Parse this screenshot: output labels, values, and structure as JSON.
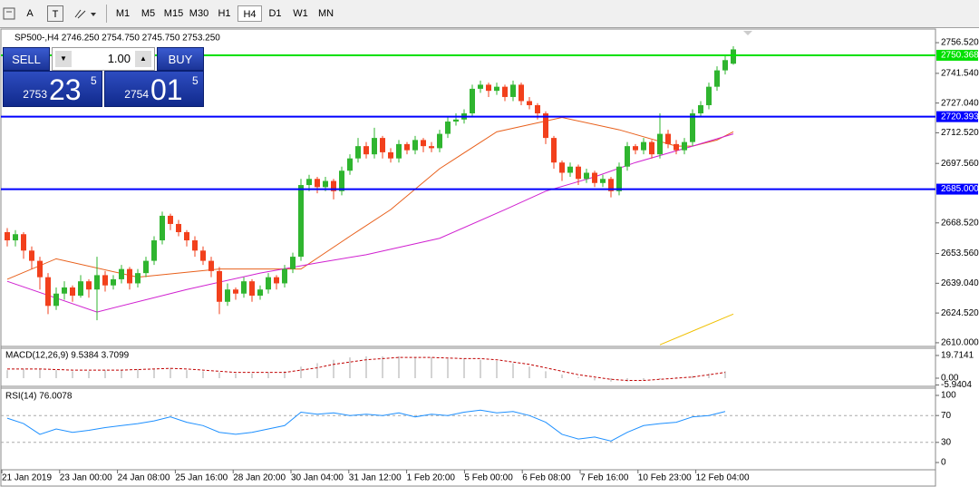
{
  "toolbar": {
    "tools": [
      "A",
      "T"
    ],
    "periods": [
      "M1",
      "M5",
      "M15",
      "M30",
      "H1",
      "H4",
      "D1",
      "W1",
      "MN"
    ],
    "active_period": 5
  },
  "trade_panel": {
    "sell": "SELL",
    "lots": "1.00",
    "buy": "BUY",
    "bid_big": "2753",
    "bid_pips": "23",
    "bid_frac": "5",
    "ask_big": "2754",
    "ask_pips": "01",
    "ask_frac": "5"
  },
  "chart": {
    "header": "SP500-,H4  2746.250 2754.750 2745.750 2753.250",
    "up_color": "#2fb52f",
    "down_color": "#f2401c",
    "ylim": [
      2608.2,
      2762.3
    ],
    "yticks": [
      {
        "value": 2756.52,
        "label": "2756.520"
      },
      {
        "value": 2741.54,
        "label": "2741.540"
      },
      {
        "value": 2727.04,
        "label": "2727.040"
      },
      {
        "value": 2712.52,
        "label": "2712.520"
      },
      {
        "value": 2697.56,
        "label": "2697.560"
      },
      {
        "value": 2668.52,
        "label": "2668.520"
      },
      {
        "value": 2653.56,
        "label": "2653.560"
      },
      {
        "value": 2639.04,
        "label": "2639.040"
      },
      {
        "value": 2624.52,
        "label": "2624.520"
      },
      {
        "value": 2610,
        "label": "2610.000"
      }
    ],
    "levels": [
      {
        "price": 2750.368,
        "color": "#00e000"
      },
      {
        "price": 2720.393,
        "color": "#0000ff"
      },
      {
        "price": {
          "value": 2685,
          "label": "2685.000"
        },
        "color": "#0000ff"
      }
    ],
    "candles": [
      [
        2664,
        2666,
        2657,
        2660
      ],
      [
        2660,
        2665,
        2657,
        2663
      ],
      [
        2663,
        2664,
        2651,
        2655
      ],
      [
        2655,
        2657,
        2646,
        2650
      ],
      [
        2650,
        2652,
        2636,
        2642
      ],
      [
        2642,
        2644,
        2624,
        2628
      ],
      [
        2628,
        2637,
        2626,
        2634
      ],
      [
        2634,
        2640,
        2631,
        2637
      ],
      [
        2637,
        2638,
        2630,
        2633
      ],
      [
        2633,
        2643,
        2632,
        2640
      ],
      [
        2640,
        2641,
        2632,
        2636
      ],
      [
        2636,
        2652,
        2621,
        2643
      ],
      [
        2643,
        2645,
        2635,
        2638
      ],
      [
        2638,
        2643,
        2636,
        2641
      ],
      [
        2641,
        2648,
        2639,
        2646
      ],
      [
        2646,
        2647,
        2636,
        2639
      ],
      [
        2639,
        2646,
        2637,
        2644
      ],
      [
        2644,
        2652,
        2642,
        2650
      ],
      [
        2650,
        2662,
        2648,
        2660
      ],
      [
        2660,
        2674,
        2658,
        2672
      ],
      [
        2672,
        2673,
        2665,
        2668
      ],
      [
        2668,
        2670,
        2662,
        2664
      ],
      [
        2664,
        2665,
        2657,
        2660
      ],
      [
        2660,
        2662,
        2652,
        2655
      ],
      [
        2655,
        2657,
        2648,
        2650
      ],
      [
        2650,
        2652,
        2642,
        2645
      ],
      [
        2645,
        2647,
        2624,
        2630
      ],
      [
        2630,
        2639,
        2628,
        2636
      ],
      [
        2636,
        2637,
        2631,
        2634
      ],
      [
        2634,
        2642,
        2632,
        2640
      ],
      [
        2640,
        2641,
        2630,
        2633
      ],
      [
        2633,
        2638,
        2631,
        2636
      ],
      [
        2636,
        2644,
        2634,
        2642
      ],
      [
        2642,
        2643,
        2636,
        2639
      ],
      [
        2639,
        2648,
        2637,
        2646
      ],
      [
        2646,
        2654,
        2644,
        2652
      ],
      [
        2652,
        2690,
        2650,
        2687
      ],
      [
        2687,
        2692,
        2684,
        2690
      ],
      [
        2690,
        2691,
        2683,
        2686
      ],
      [
        2686,
        2691,
        2684,
        2689
      ],
      [
        2689,
        2690,
        2680,
        2684
      ],
      [
        2684,
        2696,
        2682,
        2694
      ],
      [
        2694,
        2702,
        2692,
        2700
      ],
      [
        2700,
        2710,
        2698,
        2706
      ],
      [
        2706,
        2708,
        2700,
        2702
      ],
      [
        2702,
        2715,
        2700,
        2710
      ],
      [
        2710,
        2711,
        2700,
        2703
      ],
      [
        2703,
        2705,
        2698,
        2700
      ],
      [
        2700,
        2709,
        2698,
        2707
      ],
      [
        2707,
        2708,
        2702,
        2704
      ],
      [
        2704,
        2711,
        2702,
        2709
      ],
      [
        2709,
        2710,
        2703,
        2706
      ],
      [
        2706,
        2708,
        2703,
        2705
      ],
      [
        2705,
        2714,
        2703,
        2712
      ],
      [
        2712,
        2720,
        2710,
        2718
      ],
      [
        2718,
        2722,
        2716,
        2719
      ],
      [
        2719,
        2724,
        2717,
        2722
      ],
      [
        2722,
        2736,
        2720,
        2734
      ],
      [
        2734,
        2738,
        2732,
        2736
      ],
      [
        2736,
        2737,
        2730,
        2733
      ],
      [
        2733,
        2737,
        2731,
        2735
      ],
      [
        2735,
        2736,
        2728,
        2730
      ],
      [
        2730,
        2738,
        2728,
        2736
      ],
      [
        2736,
        2737,
        2726,
        2728
      ],
      [
        2728,
        2730,
        2724,
        2726
      ],
      [
        2726,
        2727,
        2719,
        2722
      ],
      [
        2722,
        2723,
        2707,
        2710
      ],
      [
        2710,
        2711,
        2695,
        2698
      ],
      [
        2698,
        2699,
        2689,
        2693
      ],
      [
        2693,
        2698,
        2691,
        2696
      ],
      [
        2696,
        2697,
        2687,
        2690
      ],
      [
        2690,
        2695,
        2688,
        2693
      ],
      [
        2693,
        2694,
        2686,
        2688
      ],
      [
        2688,
        2692,
        2686,
        2690
      ],
      [
        2690,
        2691,
        2681,
        2684
      ],
      [
        2684,
        2698,
        2682,
        2696
      ],
      [
        2696,
        2708,
        2694,
        2706
      ],
      [
        2706,
        2707,
        2702,
        2704
      ],
      [
        2704,
        2710,
        2702,
        2708
      ],
      [
        2708,
        2709,
        2700,
        2702
      ],
      [
        2702,
        2722,
        2700,
        2712
      ],
      [
        2712,
        2714,
        2705,
        2707
      ],
      [
        2707,
        2709,
        2702,
        2704
      ],
      [
        2704,
        2710,
        2702,
        2708
      ],
      [
        2708,
        2724,
        2706,
        2722
      ],
      [
        2722,
        2728,
        2720,
        2726
      ],
      [
        2726,
        2737,
        2724,
        2735
      ],
      [
        2735,
        2745,
        2733,
        2743
      ],
      [
        2743,
        2750,
        2741,
        2748
      ],
      [
        2746.25,
        2754.75,
        2745.75,
        2753.25
      ]
    ],
    "lines": [
      {
        "color": "#e8601c",
        "x": [
          0,
          6,
          16,
          26,
          36,
          42,
          47,
          53,
          60,
          68,
          75,
          82,
          84,
          87,
          89
        ],
        "values": [
          2641,
          2651,
          2642,
          2646,
          2646,
          2662,
          2675,
          2695,
          2713,
          2720,
          2714,
          2706,
          2706,
          2709,
          2713
        ]
      },
      {
        "color": "#d020d0",
        "x": [
          0,
          11,
          22,
          31,
          38,
          44,
          53,
          61,
          66,
          72,
          77,
          84,
          89
        ],
        "values": [
          2640,
          2625,
          2636,
          2644,
          2649,
          2653,
          2661,
          2675,
          2684,
          2691,
          2698,
          2706,
          2712
        ]
      },
      {
        "color": "#f0c000",
        "x": [
          80,
          89
        ],
        "values": [
          2609,
          2624
        ]
      }
    ],
    "macd": {
      "label": "MACD(12,26,9) 9.5384 3.7099",
      "ylim": [
        -7.1,
        26
      ],
      "yticks": [
        19.7141,
        {
          "value": 0,
          "label": "0.00"
        },
        -5.9404
      ],
      "x": [
        0,
        2,
        4,
        6,
        8,
        10,
        12,
        14,
        16,
        18,
        20,
        22,
        24,
        26,
        28,
        30,
        32,
        34,
        36,
        38,
        40,
        42,
        44,
        46,
        48,
        50,
        52,
        54,
        56,
        58,
        60,
        62,
        64,
        66,
        68,
        70,
        72,
        74,
        76,
        78,
        80,
        82,
        84,
        86,
        88
      ],
      "histogram": [
        7,
        8,
        8,
        7,
        6,
        6,
        7,
        7,
        8,
        8,
        9,
        7,
        6,
        5,
        4,
        4,
        5,
        6,
        10,
        13,
        16,
        18,
        19,
        19,
        19,
        18,
        18,
        17,
        17,
        16,
        15,
        13,
        10,
        6,
        3,
        1,
        -2,
        -3,
        -3,
        -2,
        -1,
        1,
        2,
        4,
        6
      ],
      "signal": [
        8,
        8,
        8,
        7.5,
        7,
        7,
        7,
        7,
        7.5,
        8,
        8.5,
        8,
        7,
        6,
        5,
        5,
        5,
        5,
        7,
        9,
        12,
        14,
        16,
        17,
        18,
        18,
        18,
        17.5,
        17,
        17,
        16,
        14,
        12,
        9,
        6,
        3,
        1,
        -1,
        -2,
        -2,
        -1,
        0,
        1,
        3,
        5
      ],
      "hist_color": "#a8a8a8",
      "signal_color": "#c00000"
    },
    "rsi": {
      "label": "RSI(14) 76.0078",
      "ylim": [
        -10.8,
        110.8
      ],
      "yticks": [
        100,
        70,
        30,
        0
      ],
      "levels": [
        70,
        30
      ],
      "color": "#1e90ff",
      "x": [
        0,
        2,
        4,
        6,
        8,
        10,
        12,
        14,
        16,
        18,
        20,
        22,
        24,
        26,
        28,
        30,
        32,
        34,
        36,
        38,
        40,
        42,
        44,
        46,
        48,
        50,
        52,
        54,
        56,
        58,
        60,
        62,
        64,
        66,
        68,
        70,
        72,
        74,
        76,
        78,
        80,
        82,
        84,
        86,
        88
      ],
      "values": [
        66,
        58,
        42,
        50,
        45,
        48,
        52,
        55,
        58,
        62,
        68,
        60,
        55,
        45,
        42,
        45,
        50,
        55,
        75,
        72,
        74,
        70,
        72,
        70,
        74,
        68,
        72,
        70,
        75,
        78,
        74,
        76,
        70,
        60,
        42,
        35,
        38,
        32,
        45,
        55,
        58,
        60,
        68,
        70,
        76.0078
      ]
    },
    "x_labels": [
      "21 Jan 2019",
      "23 Jan 00:00",
      "24 Jan 08:00",
      "25 Jan 16:00",
      "28 Jan 20:00",
      "30 Jan 04:00",
      "31 Jan 12:00",
      "1 Feb 20:00",
      "5 Feb 00:00",
      "6 Feb 08:00",
      "7 Feb 16:00",
      "10 Feb 23:00",
      "12 Feb 04:00"
    ]
  }
}
